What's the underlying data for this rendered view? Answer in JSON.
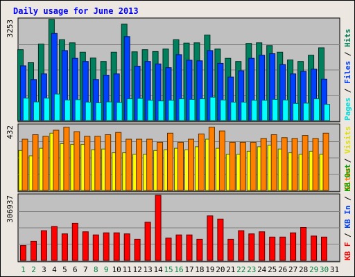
{
  "chart_data": {
    "type": "bar",
    "title": "Daily usage for June 2013",
    "categories": [
      "1",
      "2",
      "3",
      "4",
      "5",
      "6",
      "7",
      "8",
      "9",
      "10",
      "11",
      "12",
      "13",
      "14",
      "15",
      "16",
      "17",
      "18",
      "19",
      "20",
      "21",
      "22",
      "23",
      "24",
      "25",
      "26",
      "27",
      "28",
      "29",
      "30",
      "31"
    ],
    "weekend_days": [
      "1",
      "2",
      "8",
      "9",
      "15",
      "16",
      "22",
      "23",
      "29",
      "30"
    ],
    "panels": [
      {
        "id": "pages-files-hits",
        "ymax_label": "3253",
        "ymax": 3253,
        "legend": [
          "Pages",
          "/",
          "Files",
          "/",
          "Hits"
        ],
        "series": [
          {
            "name": "Hits",
            "color": "#00805c",
            "values": [
              2280,
              1860,
              2460,
              3253,
              2600,
              2500,
              2200,
              2010,
              1900,
              2200,
              3100,
              2210,
              2280,
              2220,
              2300,
              2600,
              2490,
              2500,
              2750,
              2300,
              2000,
              1900,
              2480,
              2500,
              2410,
              2200,
              1950,
              1900,
              2100,
              2340,
              0
            ]
          },
          {
            "name": "Files",
            "color": "#0040ff",
            "values": [
              1760,
              1320,
              1500,
              2800,
              2250,
              2000,
              1900,
              1320,
              1460,
              1500,
              2700,
              1750,
              1900,
              1820,
              1700,
              2120,
              1940,
              1920,
              2250,
              1840,
              1400,
              1600,
              2000,
              2100,
              2150,
              1800,
              1500,
              1580,
              1650,
              1330,
              0
            ]
          },
          {
            "name": "Pages",
            "color": "#00ffff",
            "values": [
              720,
              600,
              720,
              850,
              660,
              670,
              590,
              570,
              600,
              580,
              700,
              710,
              650,
              630,
              650,
              700,
              680,
              700,
              750,
              660,
              590,
              590,
              650,
              650,
              680,
              660,
              550,
              560,
              700,
              520,
              0
            ]
          }
        ]
      },
      {
        "id": "visits-sites",
        "ymax_label": "432",
        "ymax": 432,
        "legend": [
          "Sites",
          "/",
          "Visits"
        ],
        "series": [
          {
            "name": "Visits",
            "color": "#ffff00",
            "values": [
              265,
              230,
              280,
              380,
              310,
              305,
              305,
              270,
              275,
              250,
              250,
              240,
              240,
              265,
              270,
              280,
              270,
              290,
              340,
              280,
              240,
              240,
              260,
              290,
              300,
              275,
              250,
              240,
              260,
              240,
              0
            ]
          },
          {
            "name": "Sites",
            "color": "#ff8000",
            "values": [
              340,
              370,
              360,
              400,
              420,
              390,
              360,
              360,
              370,
              385,
              340,
              340,
              340,
              320,
              380,
              320,
              340,
              375,
              420,
              395,
              320,
              320,
              320,
              345,
              370,
              350,
              345,
              365,
              345,
              380,
              0
            ]
          }
        ]
      },
      {
        "id": "kb",
        "ymax_label": "306937",
        "ymax": 306937,
        "legend": [
          "KB F",
          "/",
          "KB In",
          "/",
          "KB Out"
        ],
        "series": [
          {
            "name": "KB F",
            "color": "#ff0000",
            "values": [
              70000,
              90000,
              140000,
              160000,
              125000,
              175000,
              135000,
              120000,
              130000,
              130000,
              125000,
              100000,
              180000,
              306937,
              105000,
              120000,
              120000,
              100000,
              210000,
              195000,
              100000,
              140000,
              125000,
              135000,
              110000,
              110000,
              130000,
              155000,
              115000,
              110000,
              0
            ]
          }
        ]
      }
    ]
  }
}
